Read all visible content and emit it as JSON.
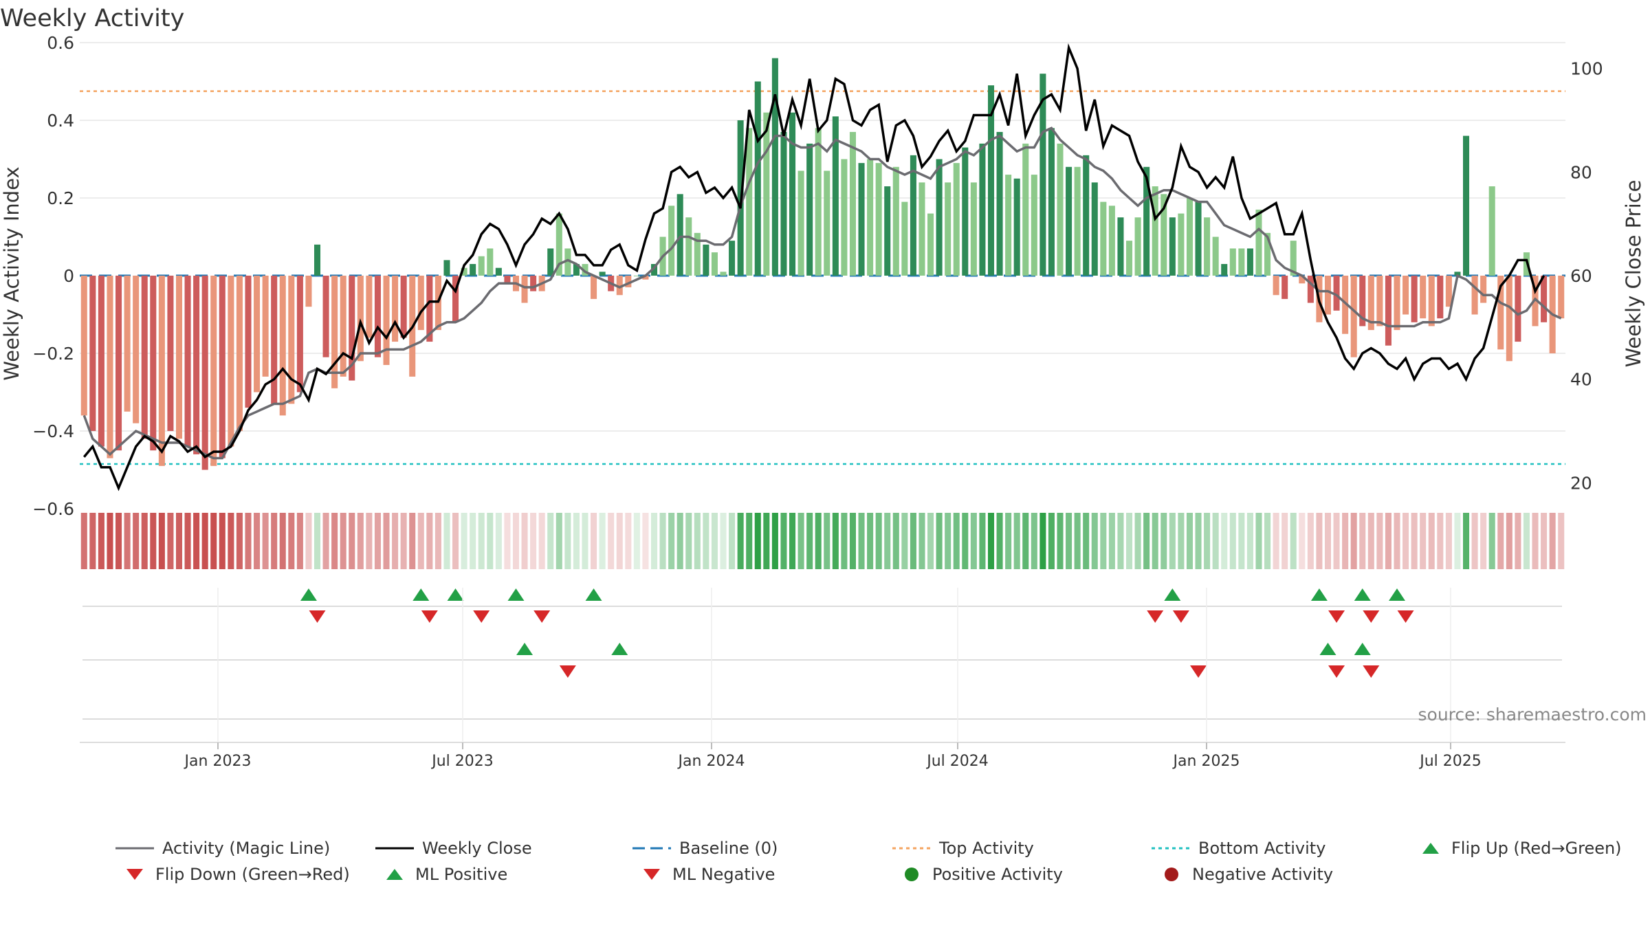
{
  "chart_data": {
    "type": "bar",
    "title": "Weekly Activity",
    "ylabel": "Weekly Activity Index",
    "y2label": "Weekly Close Price",
    "ylim": [
      -0.6,
      0.6
    ],
    "y2lim": [
      15,
      105
    ],
    "yticks": [
      "0.6",
      "0.4",
      "0.2",
      "0",
      "−0.2",
      "−0.4",
      "−0.6"
    ],
    "y2ticks": [
      "100",
      "80",
      "60",
      "40",
      "20"
    ],
    "xtick_labels": [
      "Jan 2023",
      "Jul 2023",
      "Jan 2024",
      "Jul 2024",
      "Jan 2025",
      "Jul 2025"
    ],
    "top_activity": 0.475,
    "bottom_activity": -0.485,
    "baseline": 0,
    "source": "source: sharemaestro.com",
    "weeks": 158,
    "activity_values": [
      -0.36,
      -0.4,
      -0.44,
      -0.47,
      -0.45,
      -0.35,
      -0.38,
      -0.42,
      -0.45,
      -0.49,
      -0.4,
      -0.42,
      -0.44,
      -0.46,
      -0.5,
      -0.49,
      -0.47,
      -0.44,
      -0.4,
      -0.34,
      -0.3,
      -0.26,
      -0.33,
      -0.36,
      -0.33,
      -0.3,
      -0.08,
      0.08,
      -0.21,
      -0.29,
      -0.26,
      -0.27,
      -0.22,
      -0.16,
      -0.21,
      -0.23,
      -0.17,
      -0.16,
      -0.26,
      -0.14,
      -0.17,
      -0.14,
      0.04,
      -0.12,
      0.02,
      0.03,
      0.05,
      0.07,
      0.02,
      -0.02,
      -0.04,
      -0.07,
      -0.04,
      -0.04,
      0.07,
      0.16,
      0.07,
      0.03,
      0.03,
      -0.06,
      0.01,
      -0.04,
      -0.05,
      -0.03,
      0.0,
      -0.01,
      0.03,
      0.1,
      0.18,
      0.21,
      0.15,
      0.11,
      0.08,
      0.06,
      0.01,
      0.09,
      0.4,
      0.38,
      0.5,
      0.42,
      0.56,
      0.37,
      0.42,
      0.27,
      0.34,
      0.38,
      0.27,
      0.41,
      0.3,
      0.37,
      0.29,
      0.3,
      0.29,
      0.23,
      0.28,
      0.19,
      0.31,
      0.24,
      0.16,
      0.3,
      0.24,
      0.29,
      0.33,
      0.24,
      0.34,
      0.49,
      0.37,
      0.26,
      0.25,
      0.34,
      0.26,
      0.52,
      0.38,
      0.34,
      0.28,
      0.28,
      0.31,
      0.24,
      0.19,
      0.18,
      0.15,
      0.09,
      0.15,
      0.28,
      0.23,
      0.21,
      0.15,
      0.16,
      0.2,
      0.19,
      0.15,
      0.1,
      0.03,
      0.07,
      0.07,
      0.07,
      0.17,
      0.11,
      -0.05,
      -0.06,
      0.09,
      -0.02,
      -0.07,
      -0.12,
      -0.1,
      -0.09,
      -0.15,
      -0.21,
      -0.13,
      -0.14,
      -0.13,
      -0.18,
      -0.14,
      -0.1,
      -0.12,
      -0.11,
      -0.13,
      -0.11,
      -0.08,
      0.01
    ],
    "activity_tail": [
      0.36,
      -0.1,
      -0.07,
      0.23,
      -0.19,
      -0.22,
      -0.17,
      0.06,
      -0.13,
      -0.12,
      -0.2,
      -0.11
    ],
    "magic_line": [
      -0.36,
      -0.42,
      -0.44,
      -0.46,
      -0.44,
      -0.42,
      -0.4,
      -0.41,
      -0.42,
      -0.43,
      -0.43,
      -0.43,
      -0.44,
      -0.45,
      -0.46,
      -0.47,
      -0.47,
      -0.43,
      -0.39,
      -0.36,
      -0.35,
      -0.34,
      -0.33,
      -0.33,
      -0.32,
      -0.31,
      -0.25,
      -0.24,
      -0.25,
      -0.25,
      -0.25,
      -0.23,
      -0.2,
      -0.2,
      -0.2,
      -0.19,
      -0.19,
      -0.19,
      -0.18,
      -0.17,
      -0.15,
      -0.13,
      -0.12,
      -0.12,
      -0.11,
      -0.09,
      -0.07,
      -0.04,
      -0.02,
      -0.02,
      -0.02,
      -0.03,
      -0.03,
      -0.02,
      -0.01,
      0.03,
      0.04,
      0.03,
      0.01,
      0.0,
      -0.01,
      -0.02,
      -0.03,
      -0.02,
      -0.01,
      0.0,
      0.02,
      0.05,
      0.07,
      0.1,
      0.1,
      0.09,
      0.09,
      0.08,
      0.08,
      0.1,
      0.18,
      0.24,
      0.29,
      0.32,
      0.36,
      0.36,
      0.34,
      0.33,
      0.33,
      0.34,
      0.32,
      0.35,
      0.34,
      0.33,
      0.32,
      0.3,
      0.3,
      0.28,
      0.27,
      0.26,
      0.27,
      0.26,
      0.25,
      0.28,
      0.29,
      0.3,
      0.32,
      0.31,
      0.33,
      0.35,
      0.36,
      0.34,
      0.32,
      0.33,
      0.33,
      0.37,
      0.38,
      0.35,
      0.33,
      0.31,
      0.3,
      0.28,
      0.27,
      0.25,
      0.22,
      0.2,
      0.18,
      0.2,
      0.21,
      0.22,
      0.22,
      0.21,
      0.2,
      0.19,
      0.19,
      0.16,
      0.13,
      0.12,
      0.11,
      0.1,
      0.12,
      0.1,
      0.04,
      0.02,
      0.01,
      0.0,
      -0.02,
      -0.04,
      -0.04,
      -0.05,
      -0.07,
      -0.09,
      -0.11,
      -0.12,
      -0.12,
      -0.13,
      -0.13,
      -0.13,
      -0.13,
      -0.12,
      -0.12,
      -0.12,
      -0.11,
      0.0
    ],
    "magic_tail": [
      -0.01,
      -0.03,
      -0.05,
      -0.05,
      -0.07,
      -0.08,
      -0.1,
      -0.09,
      -0.06,
      -0.08,
      -0.1,
      -0.11
    ],
    "weekly_close": [
      25,
      27,
      23,
      23,
      19,
      23,
      27,
      29,
      28,
      26,
      29,
      28,
      26,
      27,
      25,
      26,
      26,
      27,
      30,
      34,
      36,
      39,
      40,
      42,
      40,
      39,
      36,
      42,
      41,
      43,
      45,
      44,
      51,
      47,
      50,
      48,
      51,
      48,
      50,
      53,
      55,
      55,
      59,
      57,
      62,
      64,
      68,
      70,
      69,
      66,
      62,
      66,
      68,
      71,
      70,
      72,
      69,
      64,
      64,
      62,
      62,
      65,
      66,
      62,
      61,
      67,
      72,
      73,
      80,
      81,
      79,
      80,
      76,
      77,
      75,
      77,
      73,
      92,
      86,
      88,
      95,
      87,
      94,
      89,
      98,
      88,
      90,
      98,
      97,
      90,
      89,
      92,
      93,
      82,
      89,
      90,
      87,
      81,
      83,
      86,
      88,
      84,
      86,
      91,
      91,
      91,
      95,
      89,
      99,
      87,
      91,
      94,
      95,
      92,
      104,
      100,
      88,
      94,
      85,
      89,
      88,
      87,
      82,
      79,
      71,
      73,
      77,
      85,
      81,
      80,
      77,
      79,
      77,
      83,
      75,
      71,
      72,
      73,
      74,
      68,
      68,
      72,
      63,
      55,
      51,
      48,
      44,
      42,
      45,
      46,
      45,
      43,
      42,
      44,
      40,
      43,
      44,
      44,
      42,
      43
    ],
    "close_tail": [
      40,
      44,
      46,
      52,
      58,
      60,
      63,
      63,
      57,
      60
    ],
    "flip_up_weeks": [
      26,
      39,
      43,
      50,
      59,
      126,
      143,
      148,
      152
    ],
    "flip_down_weeks": [
      27,
      40,
      46,
      53,
      124,
      127,
      145,
      149,
      153
    ],
    "ml_positive_weeks": [
      51,
      62,
      144,
      148
    ],
    "ml_negative_weeks": [
      56,
      129,
      145,
      149
    ]
  },
  "legend": {
    "magic_line": "Activity (Magic Line)",
    "weekly_close": "Weekly Close",
    "baseline": "Baseline (0)",
    "top_activity": "Top Activity",
    "bottom_activity": "Bottom Activity",
    "flip_up": "Flip Up (Red→Green)",
    "flip_down": "Flip Down (Green→Red)",
    "ml_positive": "ML Positive",
    "ml_negative": "ML Negative",
    "positive_activity": "Positive Activity",
    "negative_activity": "Negative Activity"
  },
  "colors": {
    "bar_green_dark": "#2e8b57",
    "bar_green_light": "#8cc98a",
    "bar_red_dark": "#cd5c5c",
    "bar_red_light": "#e9967a",
    "magic_line": "#6b6b70",
    "weekly_close": "#000000",
    "baseline": "#1f77b4",
    "top_activity": "#f4a460",
    "bottom_activity": "#20c0c0",
    "marker_green": "#22a046",
    "marker_red": "#d62728",
    "dot_green": "#1f8b25",
    "dot_red": "#a31b1b"
  }
}
